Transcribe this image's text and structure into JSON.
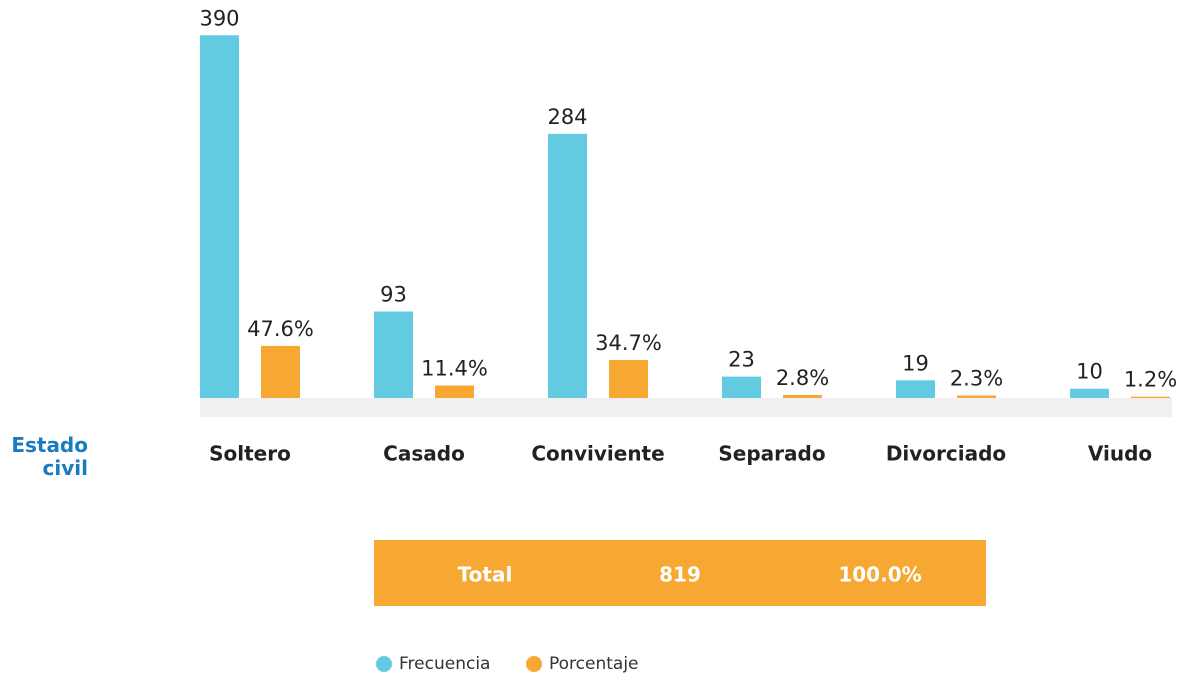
{
  "chart_data": {
    "type": "bar",
    "x_label": "Estado civil",
    "categories": [
      "Soltero",
      "Casado",
      "Conviviente",
      "Separado",
      "Divorciado",
      "Viudo"
    ],
    "series": [
      {
        "name": "Frecuencia",
        "color": "#62cbe1",
        "values": [
          390,
          93,
          284,
          23,
          19,
          10
        ]
      },
      {
        "name": "Porcentaje",
        "color": "#f7a833",
        "axis": "y2",
        "values": [
          47.6,
          11.4,
          34.7,
          2.8,
          2.3,
          1.2
        ],
        "value_labels": [
          "47.6%",
          "11.4%",
          "34.7%",
          "2.8%",
          "2.3%",
          "1.2%"
        ]
      }
    ],
    "ylim": [
      0,
      400
    ],
    "y2lim": [
      0,
      340
    ],
    "grid": false,
    "legend": "bottom",
    "total": {
      "label": "Total",
      "frecuencia": 819,
      "porcentaje": "100.0%"
    }
  }
}
